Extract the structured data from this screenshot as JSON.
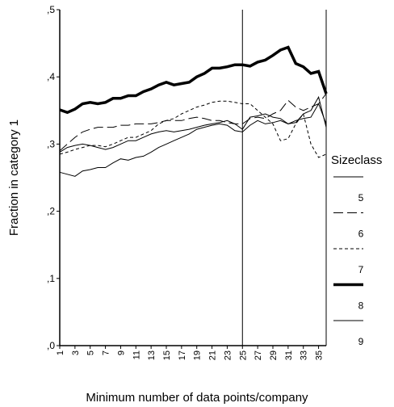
{
  "chart_data": {
    "type": "line",
    "y_label": "Fraction in category 1",
    "x_label": "Minimum number of data points/company",
    "legend_title": "Sizeclass",
    "x": [
      1,
      2,
      3,
      4,
      5,
      6,
      7,
      8,
      9,
      10,
      11,
      12,
      13,
      14,
      15,
      16,
      17,
      18,
      19,
      20,
      21,
      22,
      23,
      24,
      25,
      26,
      27,
      28,
      29,
      30,
      31,
      32,
      33,
      34,
      35,
      36
    ],
    "xlim": [
      1,
      36
    ],
    "xticks": [
      1,
      3,
      5,
      7,
      9,
      11,
      13,
      15,
      17,
      19,
      21,
      23,
      25,
      27,
      29,
      31,
      33,
      35
    ],
    "ylim": [
      0,
      0.5
    ],
    "yticks": [
      {
        "value": 0,
        "label": ",0"
      },
      {
        "value": 0.1,
        "label": ",1"
      },
      {
        "value": 0.2,
        "label": ",2"
      },
      {
        "value": 0.3,
        "label": ",3"
      },
      {
        "value": 0.4,
        "label": ",4"
      },
      {
        "value": 0.5,
        "label": ",5"
      }
    ],
    "reference_x": 25,
    "series": [
      {
        "name": "5",
        "color": "#000000",
        "line_style": "solid",
        "width": 1,
        "values": [
          0.258,
          0.255,
          0.252,
          0.26,
          0.262,
          0.265,
          0.265,
          0.272,
          0.278,
          0.276,
          0.28,
          0.282,
          0.288,
          0.295,
          0.3,
          0.305,
          0.31,
          0.315,
          0.322,
          0.325,
          0.328,
          0.33,
          0.328,
          0.32,
          0.318,
          0.328,
          0.335,
          0.33,
          0.332,
          0.335,
          0.33,
          0.335,
          0.338,
          0.34,
          0.36,
          0.33
        ]
      },
      {
        "name": "6",
        "color": "#000000",
        "line_style": "long-dash",
        "width": 1,
        "values": [
          0.29,
          0.3,
          0.31,
          0.318,
          0.322,
          0.325,
          0.325,
          0.325,
          0.328,
          0.328,
          0.33,
          0.33,
          0.33,
          0.332,
          0.335,
          0.335,
          0.335,
          0.338,
          0.34,
          0.338,
          0.335,
          0.335,
          0.332,
          0.33,
          0.33,
          0.338,
          0.34,
          0.338,
          0.345,
          0.35,
          0.365,
          0.355,
          0.35,
          0.355,
          0.36,
          0.375
        ]
      },
      {
        "name": "7",
        "color": "#000000",
        "line_style": "short-dash",
        "width": 1,
        "values": [
          0.285,
          0.288,
          0.292,
          0.295,
          0.298,
          0.298,
          0.296,
          0.3,
          0.305,
          0.31,
          0.31,
          0.315,
          0.32,
          0.33,
          0.335,
          0.338,
          0.345,
          0.35,
          0.355,
          0.358,
          0.362,
          0.364,
          0.364,
          0.362,
          0.36,
          0.36,
          0.35,
          0.34,
          0.33,
          0.305,
          0.308,
          0.33,
          0.345,
          0.3,
          0.28,
          0.285
        ]
      },
      {
        "name": "8",
        "color": "#000000",
        "line_style": "solid",
        "width": 3.5,
        "values": [
          0.351,
          0.347,
          0.352,
          0.36,
          0.362,
          0.36,
          0.362,
          0.368,
          0.368,
          0.372,
          0.372,
          0.378,
          0.382,
          0.388,
          0.392,
          0.388,
          0.39,
          0.392,
          0.4,
          0.405,
          0.413,
          0.413,
          0.415,
          0.418,
          0.418,
          0.416,
          0.422,
          0.425,
          0.432,
          0.44,
          0.444,
          0.42,
          0.415,
          0.405,
          0.408,
          0.375
        ]
      },
      {
        "name": "9",
        "color": "#000000",
        "line_style": "solid",
        "width": 1,
        "values": [
          0.288,
          0.295,
          0.298,
          0.3,
          0.298,
          0.295,
          0.292,
          0.295,
          0.3,
          0.305,
          0.305,
          0.31,
          0.315,
          0.318,
          0.32,
          0.318,
          0.32,
          0.322,
          0.325,
          0.328,
          0.33,
          0.332,
          0.335,
          0.33,
          0.322,
          0.34,
          0.342,
          0.345,
          0.34,
          0.338,
          0.33,
          0.332,
          0.345,
          0.35,
          0.37,
          0.325
        ]
      }
    ]
  }
}
